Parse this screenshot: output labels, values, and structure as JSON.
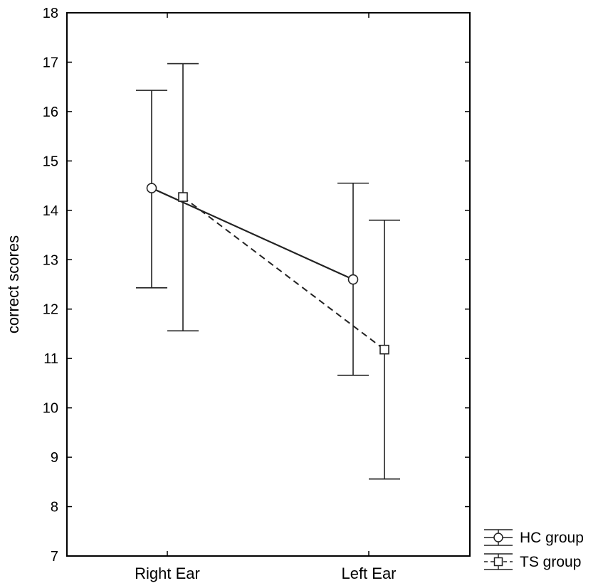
{
  "chart_data": {
    "type": "line",
    "title": "",
    "xlabel": "",
    "ylabel": "correct scores",
    "ylim": [
      7,
      18
    ],
    "yticks": [
      7,
      8,
      9,
      10,
      11,
      12,
      13,
      14,
      15,
      16,
      17,
      18
    ],
    "categories": [
      "Right Ear",
      "Left Ear"
    ],
    "grid": false,
    "legend_position": "bottom-right, outside plot",
    "error_bars": true,
    "series": [
      {
        "name": "HC group",
        "marker": "circle",
        "line_style": "solid",
        "values": [
          14.45,
          12.6
        ],
        "error_low": [
          12.43,
          10.66
        ],
        "error_high": [
          16.43,
          14.55
        ]
      },
      {
        "name": "TS group",
        "marker": "square",
        "line_style": "dashed",
        "values": [
          14.27,
          11.18
        ],
        "error_low": [
          11.56,
          8.56
        ],
        "error_high": [
          16.97,
          13.8
        ]
      }
    ]
  }
}
